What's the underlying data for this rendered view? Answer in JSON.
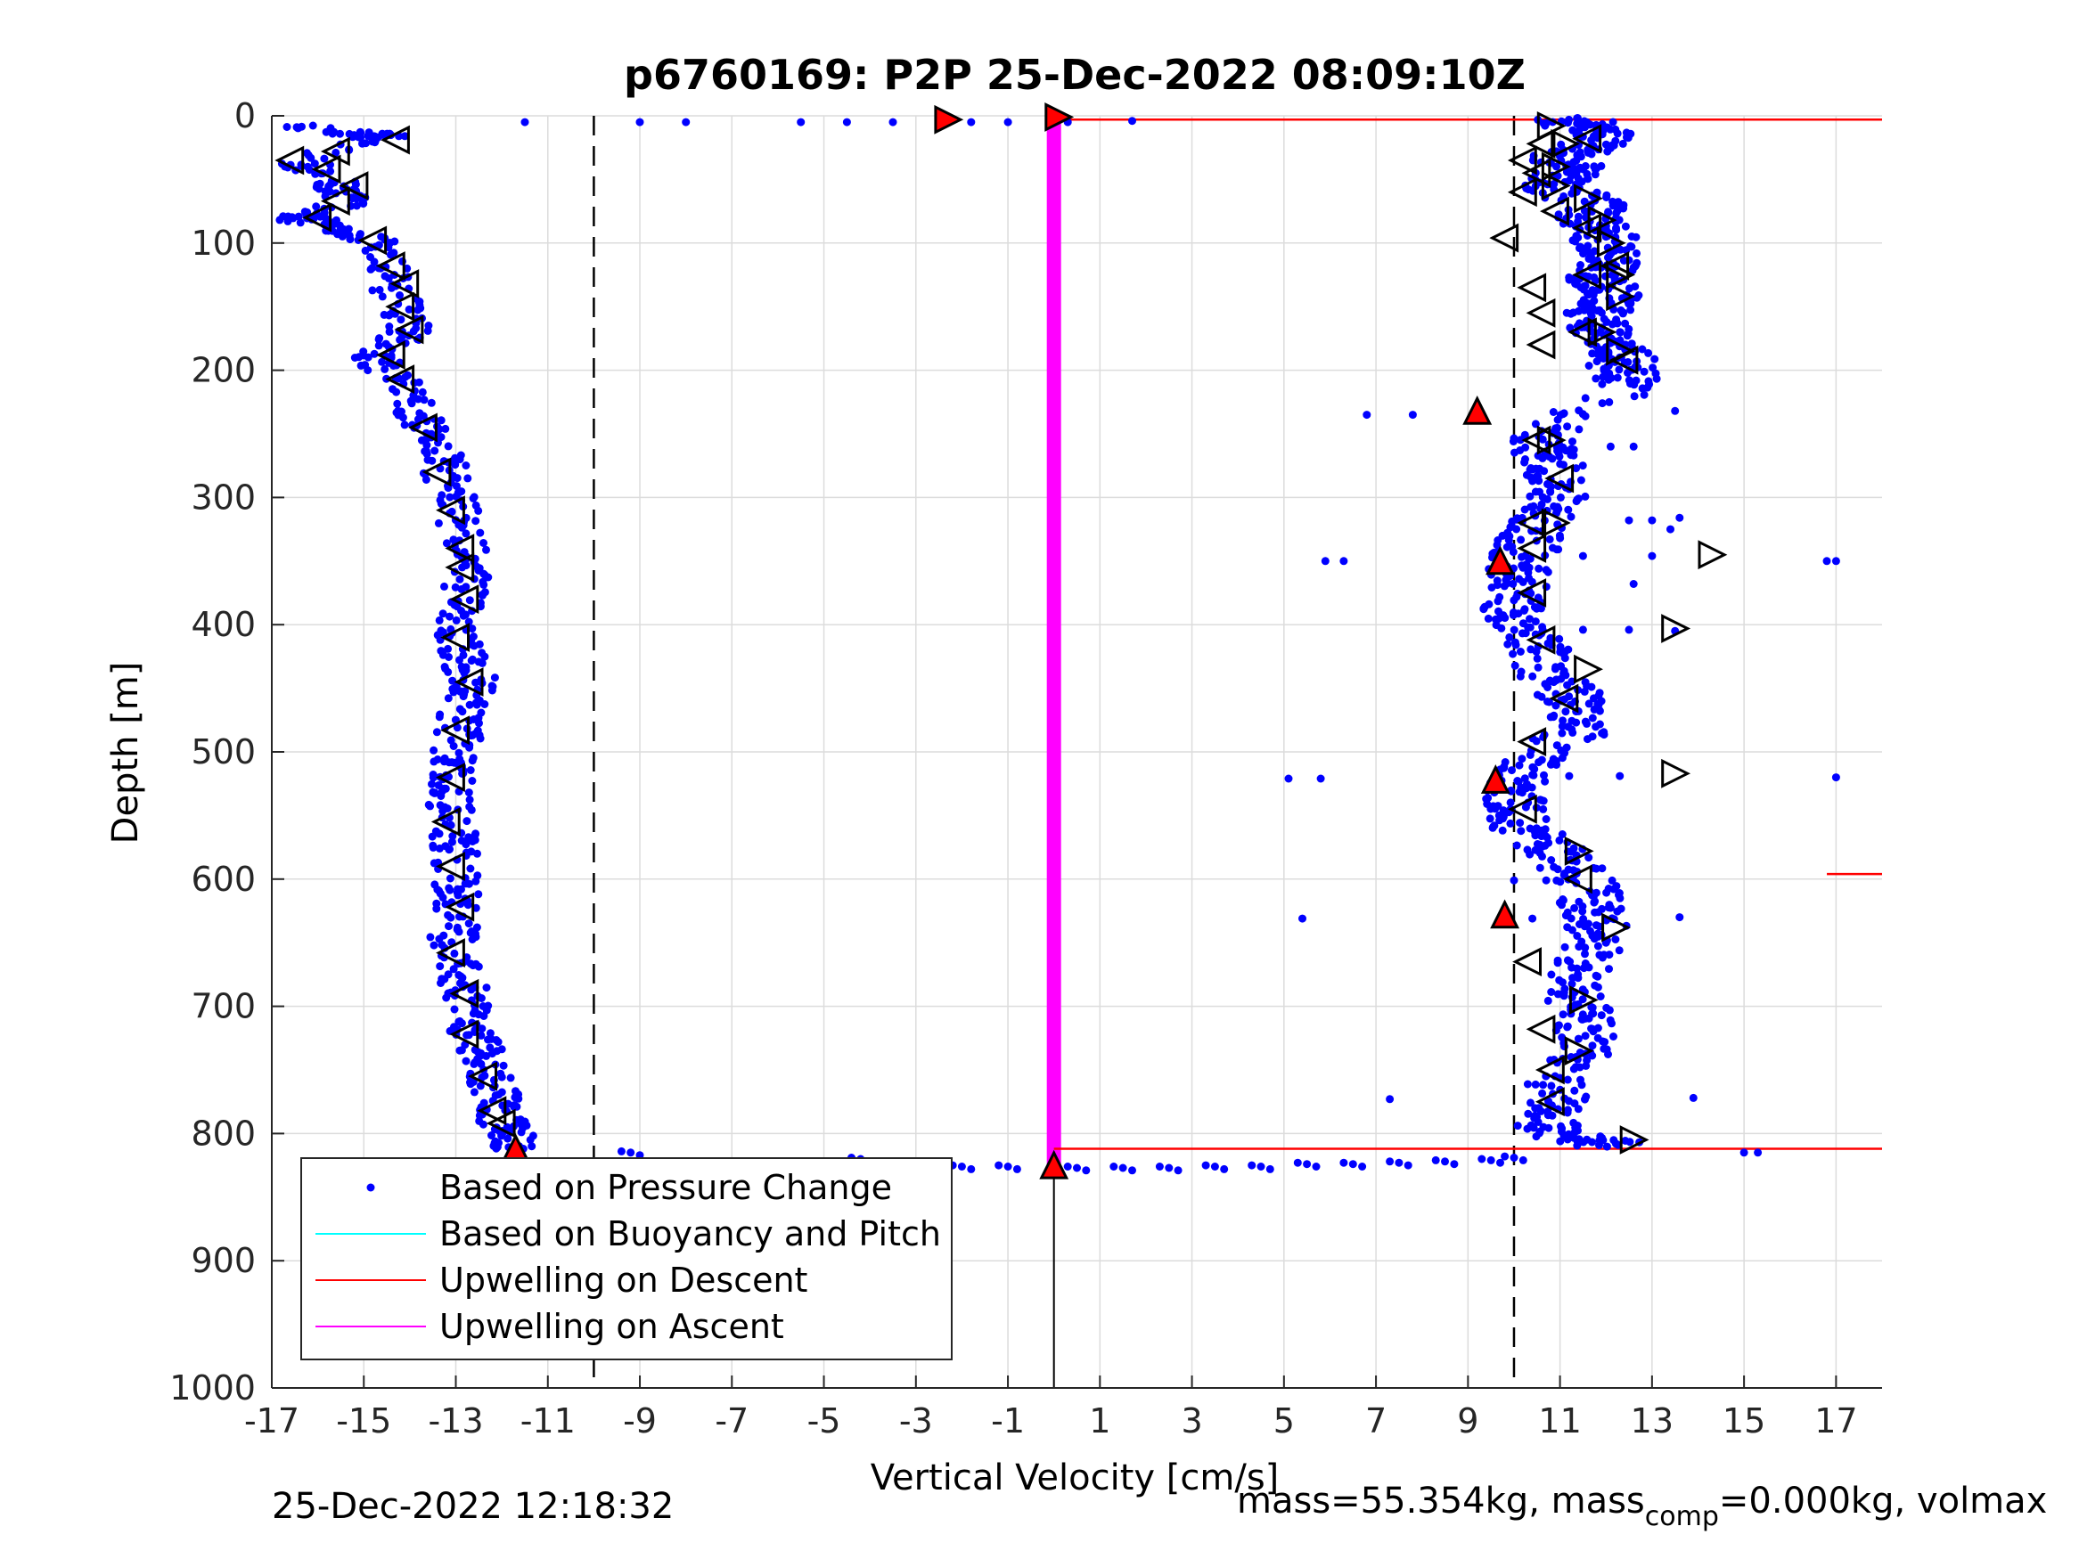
{
  "chart_data": {
    "type": "scatter",
    "title": "p6760169: P2P 25-Dec-2022 08:09:10Z",
    "xlabel": "Vertical Velocity [cm/s]",
    "ylabel": "Depth [m]",
    "xlim": [
      -17,
      18
    ],
    "ylim": [
      0,
      1000
    ],
    "y_reversed": true,
    "grid": true,
    "x_ticks": [
      -17,
      -15,
      -13,
      -11,
      -9,
      -7,
      -5,
      -3,
      -1,
      1,
      3,
      5,
      7,
      9,
      11,
      13,
      15,
      17
    ],
    "x_tick_labels": [
      "-17",
      "-15",
      "-13",
      "-11",
      "-9",
      "-7",
      "-5",
      "-3",
      "-1",
      "1",
      "3",
      "5",
      "7",
      "9",
      "11",
      "13",
      "15",
      "17"
    ],
    "y_ticks": [
      0,
      100,
      200,
      300,
      400,
      500,
      600,
      700,
      800,
      900,
      1000
    ],
    "y_tick_labels": [
      "0",
      "100",
      "200",
      "300",
      "400",
      "500",
      "600",
      "700",
      "800",
      "900",
      "1000"
    ],
    "reference_lines_x": [
      -10,
      10
    ],
    "legend": {
      "position": "bottom-left",
      "entries": [
        {
          "label": "Based on Pressure Change",
          "color": "#0000ff",
          "marker": "dot"
        },
        {
          "label": "Based on Buoyancy and Pitch",
          "color": "#00ffff",
          "marker": "line"
        },
        {
          "label": "Upwelling on Descent",
          "color": "#ff0000",
          "marker": "line"
        },
        {
          "label": "Upwelling on Ascent",
          "color": "#ff00ff",
          "marker": "line"
        }
      ]
    },
    "colors": {
      "pressure": "#0000ff",
      "descent": "#ff0000",
      "ascent": "#ff00ff",
      "buoyancy": "#00ffff"
    },
    "descent_profile": [
      [
        -16.8,
        5
      ],
      [
        -15,
        16
      ],
      [
        -14.5,
        16
      ],
      [
        -16.5,
        35
      ],
      [
        -15.7,
        48
      ],
      [
        -15.5,
        58
      ],
      [
        -15.3,
        70
      ],
      [
        -16.4,
        80
      ],
      [
        -15.6,
        88
      ],
      [
        -14.8,
        98
      ],
      [
        -14.5,
        120
      ],
      [
        -14.3,
        140
      ],
      [
        -14,
        160
      ],
      [
        -14.2,
        175
      ],
      [
        -14.7,
        190
      ],
      [
        -14.2,
        210
      ],
      [
        -13.8,
        235
      ],
      [
        -13.5,
        250
      ],
      [
        -13.3,
        270
      ],
      [
        -13.2,
        285
      ],
      [
        -13,
        305
      ],
      [
        -12.8,
        330
      ],
      [
        -12.7,
        350
      ],
      [
        -12.8,
        370
      ],
      [
        -12.9,
        390
      ],
      [
        -12.9,
        410
      ],
      [
        -12.8,
        430
      ],
      [
        -12.6,
        445
      ],
      [
        -12.8,
        460
      ],
      [
        -12.9,
        480
      ],
      [
        -13,
        500
      ],
      [
        -13.1,
        515
      ],
      [
        -13.1,
        530
      ],
      [
        -13.1,
        550
      ],
      [
        -13,
        570
      ],
      [
        -13,
        590
      ],
      [
        -13,
        610
      ],
      [
        -12.9,
        630
      ],
      [
        -13.1,
        650
      ],
      [
        -12.9,
        670
      ],
      [
        -12.8,
        690
      ],
      [
        -12.7,
        710
      ],
      [
        -12.6,
        725
      ],
      [
        -12.4,
        740
      ],
      [
        -12.2,
        760
      ],
      [
        -12.1,
        775
      ],
      [
        -12,
        790
      ],
      [
        -11.8,
        800
      ],
      [
        -11.7,
        812
      ]
    ],
    "ascent_profile": [
      [
        10.7,
        3
      ],
      [
        11.7,
        8
      ],
      [
        11.9,
        15
      ],
      [
        11.6,
        25
      ],
      [
        10.8,
        35
      ],
      [
        11.4,
        42
      ],
      [
        10.8,
        50
      ],
      [
        11,
        60
      ],
      [
        11.8,
        70
      ],
      [
        11.5,
        80
      ],
      [
        11.9,
        90
      ],
      [
        12,
        100
      ],
      [
        12.1,
        110
      ],
      [
        12,
        120
      ],
      [
        11.8,
        130
      ],
      [
        12.1,
        140
      ],
      [
        11.9,
        150
      ],
      [
        11.8,
        160
      ],
      [
        11.8,
        170
      ],
      [
        12.3,
        180
      ],
      [
        12.4,
        190
      ],
      [
        12.3,
        200
      ],
      [
        12.5,
        210
      ],
      [
        10.9,
        245
      ],
      [
        10.5,
        260
      ],
      [
        10.8,
        270
      ],
      [
        11,
        285
      ],
      [
        10.9,
        300
      ],
      [
        10.6,
        315
      ],
      [
        10.4,
        330
      ],
      [
        10.2,
        345
      ],
      [
        10.1,
        360
      ],
      [
        10.1,
        375
      ],
      [
        10,
        390
      ],
      [
        10.4,
        405
      ],
      [
        10.5,
        420
      ],
      [
        10.8,
        440
      ],
      [
        11.2,
        455
      ],
      [
        11.4,
        465
      ],
      [
        11.5,
        480
      ],
      [
        10.6,
        500
      ],
      [
        10.3,
        515
      ],
      [
        10.1,
        530
      ],
      [
        10,
        545
      ],
      [
        10.2,
        560
      ],
      [
        10.8,
        575
      ],
      [
        11.2,
        590
      ],
      [
        11.6,
        605
      ],
      [
        11.7,
        620
      ],
      [
        11.8,
        635
      ],
      [
        11.8,
        650
      ],
      [
        11.5,
        670
      ],
      [
        11.3,
        690
      ],
      [
        11.5,
        705
      ],
      [
        11.6,
        720
      ],
      [
        11.4,
        740
      ],
      [
        11,
        760
      ],
      [
        10.8,
        780
      ],
      [
        10.7,
        795
      ],
      [
        11.5,
        805
      ],
      [
        12.5,
        810
      ]
    ],
    "surface_points": [
      [
        -11.5,
        5
      ],
      [
        -9,
        5
      ],
      [
        -8,
        5
      ],
      [
        -5.5,
        5
      ],
      [
        -4.5,
        5
      ],
      [
        -3.5,
        5
      ],
      [
        -2.5,
        5
      ],
      [
        -1.8,
        5
      ],
      [
        -1,
        5
      ],
      [
        0.3,
        5
      ],
      [
        1.7,
        4
      ]
    ],
    "bottom_points": [
      [
        -9.2,
        815
      ],
      [
        -8.2,
        826
      ],
      [
        -7,
        826
      ],
      [
        -6,
        827
      ],
      [
        -5,
        826
      ],
      [
        -4.2,
        820
      ],
      [
        -3.5,
        824
      ],
      [
        -3,
        826
      ],
      [
        -2,
        826
      ],
      [
        -1,
        826
      ],
      [
        0.5,
        827
      ],
      [
        1.5,
        827
      ],
      [
        2.5,
        827
      ],
      [
        3.5,
        826
      ],
      [
        4.5,
        826
      ],
      [
        5.5,
        824
      ],
      [
        6.5,
        824
      ],
      [
        7.5,
        823
      ],
      [
        8.5,
        822
      ],
      [
        9.5,
        821
      ],
      [
        10,
        819
      ]
    ],
    "outlier_points": [
      [
        6.8,
        235
      ],
      [
        7.8,
        235
      ],
      [
        5.9,
        350
      ],
      [
        6.3,
        350
      ],
      [
        11,
        332
      ],
      [
        12.5,
        318
      ],
      [
        13,
        318
      ],
      [
        11.5,
        346
      ],
      [
        13,
        346
      ],
      [
        11.5,
        404
      ],
      [
        12.5,
        404
      ],
      [
        13.5,
        405
      ],
      [
        5.1,
        521
      ],
      [
        5.8,
        521
      ],
      [
        11.2,
        519
      ],
      [
        12.3,
        519
      ],
      [
        17,
        520
      ],
      [
        10,
        601
      ],
      [
        10.7,
        601
      ],
      [
        5.4,
        631
      ],
      [
        10.4,
        631
      ],
      [
        13.6,
        630
      ],
      [
        7.3,
        773
      ],
      [
        13.9,
        772
      ],
      [
        15,
        815
      ],
      [
        15.3,
        815
      ],
      [
        17,
        350
      ],
      [
        16.8,
        350
      ],
      [
        12.6,
        260
      ],
      [
        12.1,
        260
      ],
      [
        13.5,
        232
      ],
      [
        12.6,
        368
      ],
      [
        13.4,
        325
      ],
      [
        13.6,
        316
      ]
    ],
    "descent_triangles": [
      [
        -16.6,
        35
      ],
      [
        -14.3,
        19
      ],
      [
        -15.6,
        28
      ],
      [
        -15.8,
        42
      ],
      [
        -15.2,
        55
      ],
      [
        -15.6,
        67
      ],
      [
        -16,
        80
      ],
      [
        -14.8,
        98
      ],
      [
        -14.4,
        118
      ],
      [
        -14.1,
        132
      ],
      [
        -14.2,
        150
      ],
      [
        -14,
        168
      ],
      [
        -14.4,
        188
      ],
      [
        -14.2,
        207
      ],
      [
        -13.7,
        245
      ],
      [
        -13.4,
        280
      ],
      [
        -13.1,
        310
      ],
      [
        -12.9,
        340
      ],
      [
        -12.9,
        355
      ],
      [
        -12.8,
        380
      ],
      [
        -13,
        410
      ],
      [
        -12.7,
        445
      ],
      [
        -13,
        483
      ],
      [
        -13.1,
        520
      ],
      [
        -13.2,
        555
      ],
      [
        -13.1,
        590
      ],
      [
        -12.9,
        622
      ],
      [
        -13.1,
        658
      ],
      [
        -12.8,
        690
      ],
      [
        -12.8,
        722
      ],
      [
        -12.4,
        755
      ],
      [
        -12.2,
        782
      ],
      [
        -12,
        792
      ]
    ],
    "ascent_triangles_left": [
      [
        11.6,
        18
      ],
      [
        10.6,
        22
      ],
      [
        10.2,
        35
      ],
      [
        10.5,
        45
      ],
      [
        10.2,
        60
      ],
      [
        10.9,
        75
      ],
      [
        11.6,
        88
      ],
      [
        9.8,
        96
      ],
      [
        12.2,
        118
      ],
      [
        11.6,
        125
      ],
      [
        10.4,
        135
      ],
      [
        10.6,
        155
      ],
      [
        10.6,
        180
      ],
      [
        11.5,
        170
      ],
      [
        12.4,
        192
      ],
      [
        10.5,
        255
      ],
      [
        11,
        285
      ],
      [
        10.4,
        320
      ],
      [
        10.4,
        340
      ],
      [
        10.4,
        375
      ],
      [
        10.6,
        412
      ],
      [
        11.1,
        458
      ],
      [
        10.4,
        492
      ],
      [
        10.2,
        545
      ],
      [
        11.4,
        600
      ],
      [
        10.3,
        665
      ],
      [
        10.6,
        718
      ],
      [
        10.8,
        750
      ],
      [
        10.8,
        775
      ]
    ],
    "ascent_triangles_right": [
      [
        10.8,
        8
      ],
      [
        11.1,
        22
      ],
      [
        10.9,
        40
      ],
      [
        10.9,
        55
      ],
      [
        11.6,
        65
      ],
      [
        11.9,
        82
      ],
      [
        12.1,
        100
      ],
      [
        12.3,
        125
      ],
      [
        12.3,
        142
      ],
      [
        11.9,
        170
      ],
      [
        12.3,
        185
      ],
      [
        10.8,
        255
      ],
      [
        10.9,
        320
      ],
      [
        14.3,
        345
      ],
      [
        13.5,
        403
      ],
      [
        11.6,
        435
      ],
      [
        13.5,
        517
      ],
      [
        11.4,
        578
      ],
      [
        12.2,
        638
      ],
      [
        11.5,
        695
      ],
      [
        11.4,
        735
      ],
      [
        12.6,
        805
      ]
    ],
    "red_markers": [
      [
        -2.3,
        3
      ],
      [
        0.1,
        1
      ],
      [
        9.2,
        232
      ],
      [
        9.7,
        350
      ],
      [
        9.6,
        522
      ],
      [
        9.8,
        628
      ],
      [
        -11.7,
        812
      ],
      [
        0,
        825
      ]
    ],
    "ascent_line": {
      "x": 0,
      "from_depth": 3,
      "to_depth": 825
    },
    "descent_lines": [
      [
        0,
        3,
        18,
        3
      ],
      [
        0,
        812,
        18,
        812
      ],
      [
        16.8,
        596,
        18,
        596
      ]
    ],
    "black_vertical": {
      "x": 0,
      "from_depth": 825,
      "to_depth": 1000
    }
  },
  "footer": {
    "timestamp": "25-Dec-2022 12:18:32",
    "mass_text_prefix": "mass=55.354kg, mass",
    "mass_text_sub": "comp",
    "mass_text_suffix": "=0.000kg, volmax"
  }
}
